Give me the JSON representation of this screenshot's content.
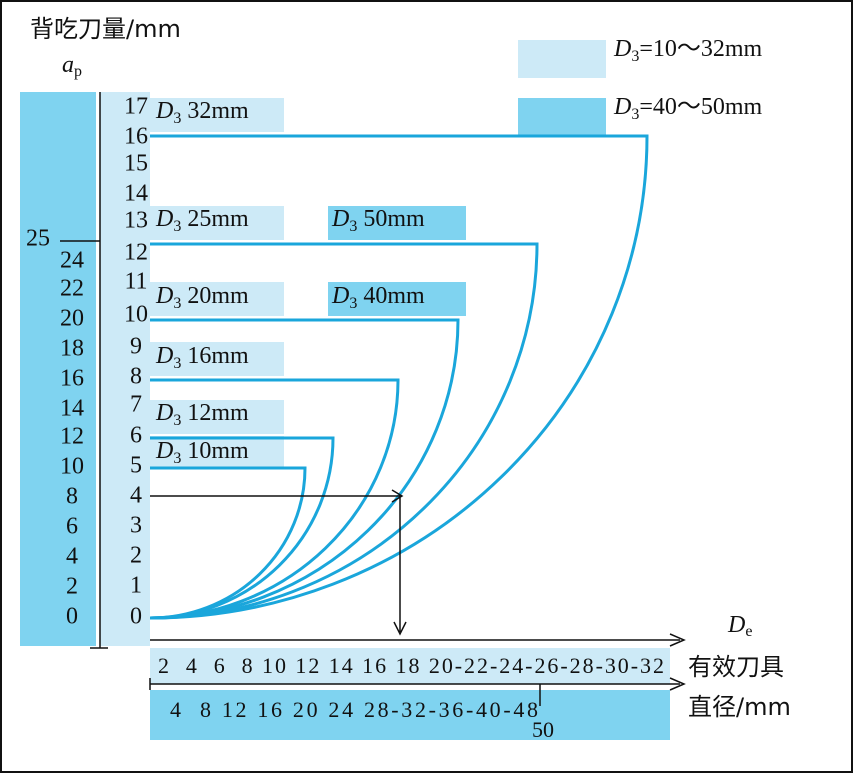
{
  "axis_title": "背吃刀量/mm",
  "ap_symbol": "a",
  "ap_sub": "p",
  "de_symbol": "D",
  "de_sub": "e",
  "x_title_1": "有效刀具",
  "x_title_2": "直径/mm",
  "legend": [
    {
      "symbol": "D",
      "sub": "3",
      "text": "=10～32mm"
    },
    {
      "symbol": "D",
      "sub": "3",
      "text": "=40～50mm"
    }
  ],
  "inner_ticks": [
    "17",
    "16",
    "15",
    "14",
    "13",
    "12",
    "11",
    "10",
    "9",
    "8",
    "7",
    "6",
    "5",
    "4",
    "3",
    "2",
    "1",
    "0"
  ],
  "outer_ticks": [
    "25",
    "24",
    "22",
    "20",
    "18",
    "16",
    "14",
    "12",
    "10",
    "8",
    "6",
    "4",
    "2",
    "0"
  ],
  "curve_labels": [
    {
      "symbol": "D",
      "sub": "3",
      "text": " 32mm"
    },
    {
      "symbol": "D",
      "sub": "3",
      "text": " 25mm"
    },
    {
      "symbol": "D",
      "sub": "3",
      "text": " 50mm"
    },
    {
      "symbol": "D",
      "sub": "3",
      "text": " 20mm"
    },
    {
      "symbol": "D",
      "sub": "3",
      "text": " 40mm"
    },
    {
      "symbol": "D",
      "sub": "3",
      "text": " 16mm"
    },
    {
      "symbol": "D",
      "sub": "3",
      "text": " 12mm"
    },
    {
      "symbol": "D",
      "sub": "3",
      "text": " 10mm"
    }
  ],
  "scale_top": "2  4  6  8 10 12 14 16 18 20-22-24-26-28-30-32",
  "scale_bottom": "4  8 12 16 20 24 28-32-36-40-48",
  "scale_extra": "50"
}
